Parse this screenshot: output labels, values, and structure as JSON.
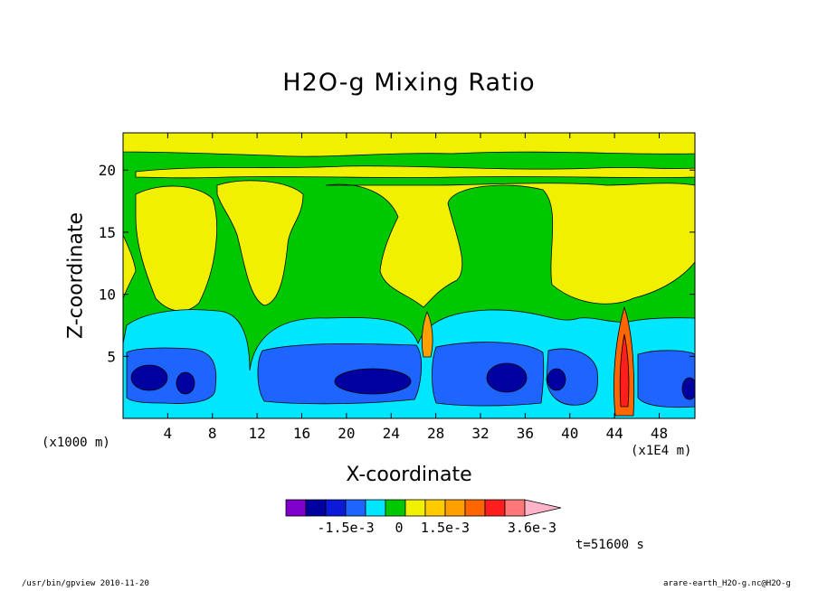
{
  "title": "H2O-g Mixing Ratio",
  "footer_left": "/usr/bin/gpview  2010-11-20",
  "footer_right": "arare-earth_H2O-g.nc@H2O-g",
  "time_label": "t=51600 s",
  "chart_data": {
    "type": "contour",
    "title": "H2O-g Mixing Ratio",
    "xlabel": "X-coordinate",
    "ylabel": "Z-coordinate",
    "x_unit": "(x1E4 m)",
    "y_unit": "(x1000 m)",
    "xlim": [
      0,
      51.2
    ],
    "ylim": [
      0,
      23
    ],
    "x_ticks": [
      4,
      8,
      12,
      16,
      20,
      24,
      28,
      32,
      36,
      40,
      44,
      48
    ],
    "y_ticks": [
      5,
      10,
      15,
      20
    ],
    "colorbar": {
      "colors": [
        "#7f00cc",
        "#0000a0",
        "#0a1ad8",
        "#1e64ff",
        "#00e6ff",
        "#00c800",
        "#f0f000",
        "#ffcc00",
        "#ffa000",
        "#ff6600",
        "#ff1e1e",
        "#ff7878",
        "#ffb4c8"
      ],
      "tick_labels": [
        "-1.5e-3",
        "0",
        "1.5e-3",
        "3.6e-3"
      ],
      "extend": "max"
    },
    "time": "t=51600 s"
  }
}
